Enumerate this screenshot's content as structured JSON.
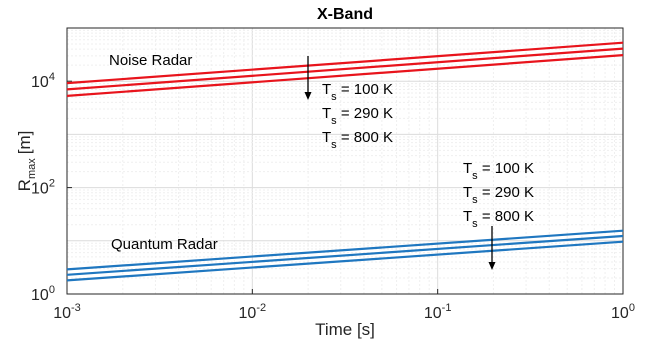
{
  "chart_data": {
    "type": "line",
    "title": "X-Band",
    "xlabel": "Time [s]",
    "ylabel_main": "R",
    "ylabel_sub": "max",
    "ylabel_unit": "[m]",
    "xscale": "log",
    "yscale": "log",
    "xlim": [
      0.001,
      1
    ],
    "ylim": [
      1,
      100000
    ],
    "grid": true,
    "x_ticks": [
      {
        "value": 0.001,
        "base": "10",
        "exp": "-3"
      },
      {
        "value": 0.01,
        "base": "10",
        "exp": "-2"
      },
      {
        "value": 0.1,
        "base": "10",
        "exp": "-1"
      },
      {
        "value": 1,
        "base": "10",
        "exp": "0"
      }
    ],
    "y_ticks": [
      {
        "value": 1,
        "base": "10",
        "exp": "0"
      },
      {
        "value": 100,
        "base": "10",
        "exp": "2"
      },
      {
        "value": 10000,
        "base": "10",
        "exp": "4"
      }
    ],
    "series": [
      {
        "name": "Noise Radar",
        "group": "noise",
        "color": "#e8141c",
        "x": [
          0.001,
          1
        ],
        "y": [
          9200,
          53000
        ]
      },
      {
        "name": "Noise Radar",
        "group": "noise",
        "color": "#e8141c",
        "x": [
          0.001,
          1
        ],
        "y": [
          7000,
          41000
        ]
      },
      {
        "name": "Noise Radar",
        "group": "noise",
        "color": "#e8141c",
        "x": [
          0.001,
          1
        ],
        "y": [
          5300,
          31000
        ]
      },
      {
        "name": "Quantum Radar",
        "group": "quantum",
        "color": "#1f77c0",
        "x": [
          0.001,
          1
        ],
        "y": [
          2.9,
          15.5
        ]
      },
      {
        "name": "Quantum Radar",
        "group": "quantum",
        "color": "#1f77c0",
        "x": [
          0.001,
          1
        ],
        "y": [
          2.3,
          12.3
        ]
      },
      {
        "name": "Quantum Radar",
        "group": "quantum",
        "color": "#1f77c0",
        "x": [
          0.001,
          1
        ],
        "y": [
          1.8,
          9.6
        ]
      }
    ],
    "annotations": {
      "noise_label": "Noise Radar",
      "quantum_label": "Quantum Radar",
      "noise_temps": [
        {
          "sym": "T",
          "sub": "s",
          "text": " = 100 K"
        },
        {
          "sym": "T",
          "sub": "s",
          "text": " = 290 K"
        },
        {
          "sym": "T",
          "sub": "s",
          "text": " = 800 K"
        }
      ],
      "quantum_temps": [
        {
          "sym": "T",
          "sub": "s",
          "text": " = 100 K"
        },
        {
          "sym": "T",
          "sub": "s",
          "text": " = 290 K"
        },
        {
          "sym": "T",
          "sub": "s",
          "text": " = 800 K"
        }
      ]
    }
  }
}
